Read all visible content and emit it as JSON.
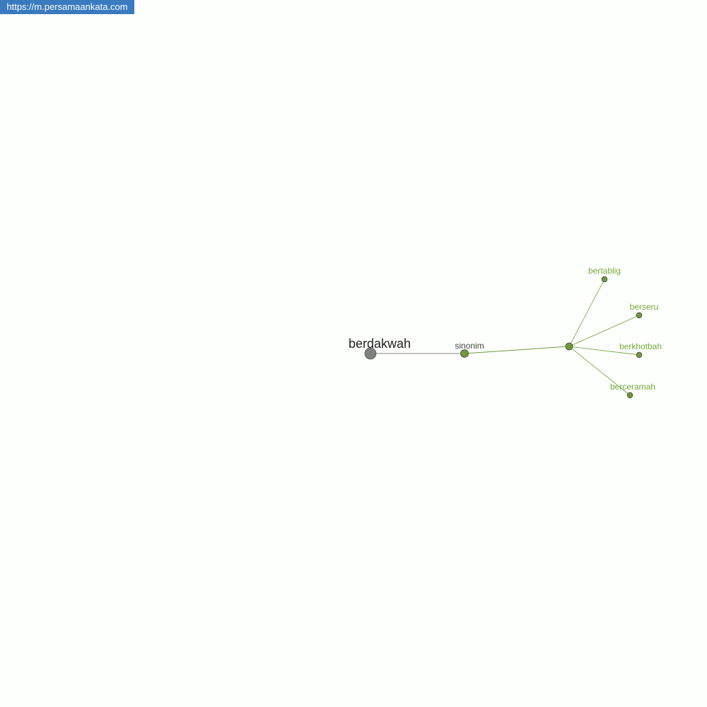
{
  "banner": {
    "url": "https://m.persamaankata.com"
  },
  "graph": {
    "root": {
      "label": "berdakwah",
      "color": "#808080"
    },
    "relation": {
      "label": "sinonim",
      "color": "#6f9a37"
    },
    "synonyms": [
      {
        "label": "bertablig"
      },
      {
        "label": "berseru"
      },
      {
        "label": "berkhotbah"
      },
      {
        "label": "berceramah"
      }
    ],
    "leaf_label_color": "#7aa83c",
    "edge_color": "#6f9a37"
  }
}
